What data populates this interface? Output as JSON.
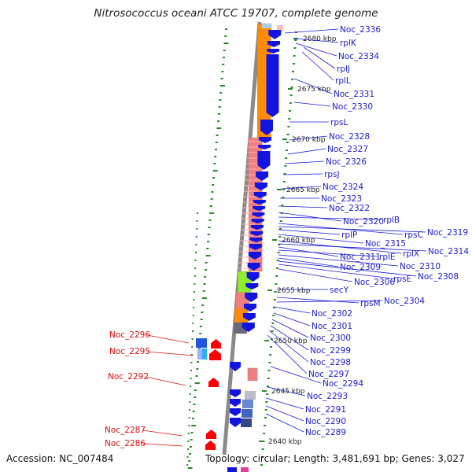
{
  "title": "Nitrosococcus oceani ATCC 19707, complete genome",
  "footer": {
    "accession": "Accession: NC_007484",
    "topology": "Topology: circular; Length: 3,481,691 bp; Genes: 3,027"
  },
  "ticks": [
    "2680 kbp",
    "2675 kbp",
    "2670 kbp",
    "2665 kbp",
    "2660 kbp",
    "2655 kbp",
    "2650 kbp",
    "2645 kbp",
    "2640 kbp"
  ],
  "blue_labels": [
    "Noc_2336",
    "rplK",
    "Noc_2334",
    "rplJ",
    "rplL",
    "Noc_2331",
    "Noc_2330",
    "rpsL",
    "Noc_2328",
    "Noc_2327",
    "Noc_2326",
    "rpsJ",
    "Noc_2324",
    "Noc_2323",
    "Noc_2322",
    "Noc_2320",
    "rplB",
    "rpsC",
    "Noc_2319",
    "rplP",
    "Noc_2315",
    "rplX",
    "Noc_2314",
    "Noc_2311",
    "rplE",
    "Noc_2310",
    "Noc_2309",
    "Noc_2308",
    "rpsE",
    "Noc_2306",
    "secY",
    "rpsM",
    "Noc_2304",
    "Noc_2302",
    "Noc_2301",
    "Noc_2300",
    "Noc_2299",
    "Noc_2298",
    "Noc_2297",
    "Noc_2294",
    "Noc_2293",
    "Noc_2291",
    "Noc_2290",
    "Noc_2289"
  ],
  "red_labels": [
    "Noc_2296",
    "Noc_2295",
    "Noc_2292",
    "Noc_2287",
    "Noc_2286"
  ],
  "colors": {
    "forward_gene": "#1414e0",
    "reverse_gene": "#ff0000",
    "cds_orange": "#ff8c00",
    "cds_pink": "#f08080",
    "cds_green": "#90ee30",
    "label_blue": "#1a1ad6",
    "label_red": "#dd1111",
    "gc_tick": "#2a8a2a"
  }
}
